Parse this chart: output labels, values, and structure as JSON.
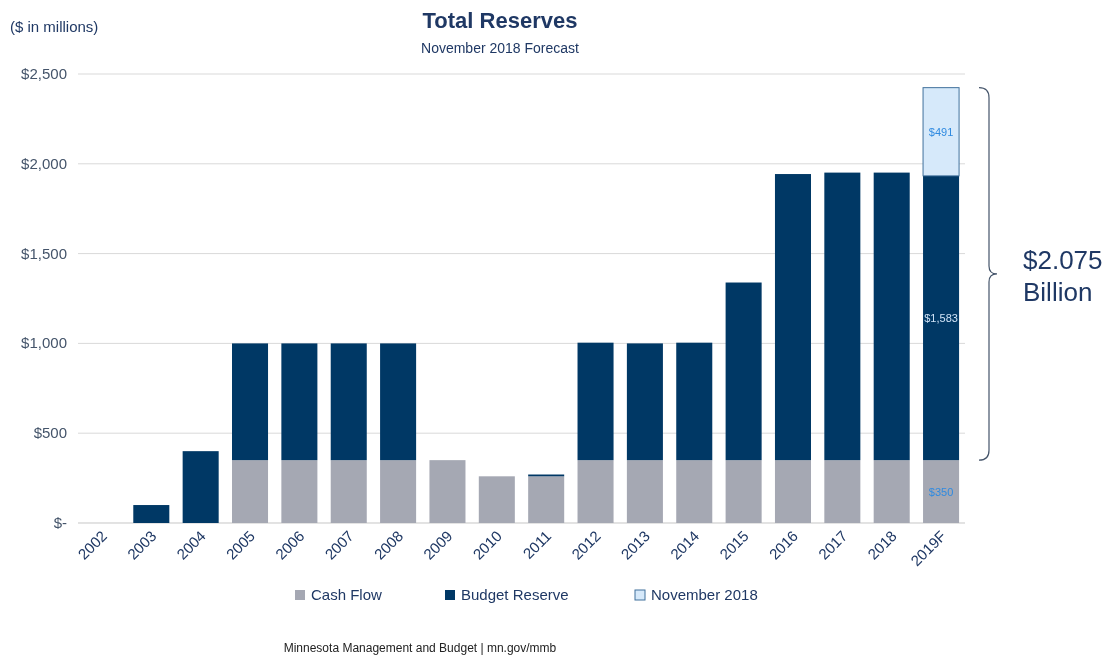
{
  "chart_data": {
    "type": "bar",
    "title": "Total Reserves",
    "subtitle": "November 2018 Forecast",
    "ylabel": "($ in millions)",
    "categories": [
      "2002",
      "2003",
      "2004",
      "2005",
      "2006",
      "2007",
      "2008",
      "2009",
      "2010",
      "2011",
      "2012",
      "2013",
      "2014",
      "2015",
      "2016",
      "2017",
      "2018",
      "2019F"
    ],
    "stacked": true,
    "series": [
      {
        "name": "Cash Flow",
        "color": "#a5a8b3",
        "values": [
          0,
          0,
          0,
          350,
          350,
          350,
          350,
          350,
          260,
          260,
          350,
          350,
          350,
          350,
          350,
          350,
          350,
          350
        ],
        "value_labels": [
          null,
          null,
          null,
          null,
          null,
          null,
          null,
          null,
          null,
          null,
          null,
          null,
          null,
          null,
          null,
          null,
          null,
          "$350"
        ]
      },
      {
        "name": "Budget Reserve",
        "color": "#003865",
        "values": [
          0,
          100,
          400,
          650,
          650,
          650,
          650,
          0,
          0,
          10,
          654,
          650,
          654,
          989,
          1593,
          1601,
          1601,
          1583
        ],
        "value_labels": [
          null,
          null,
          null,
          null,
          null,
          null,
          null,
          null,
          null,
          null,
          null,
          null,
          null,
          null,
          null,
          null,
          null,
          "$1,583"
        ]
      },
      {
        "name": "November 2018",
        "color": "#d6e9fa",
        "values": [
          0,
          0,
          0,
          0,
          0,
          0,
          0,
          0,
          0,
          0,
          0,
          0,
          0,
          0,
          0,
          0,
          0,
          491
        ],
        "value_labels": [
          null,
          null,
          null,
          null,
          null,
          null,
          null,
          null,
          null,
          null,
          null,
          null,
          null,
          null,
          null,
          null,
          null,
          "$491"
        ]
      }
    ],
    "ylim": [
      0,
      2500
    ],
    "yticks": [
      {
        "value": 0,
        "label": "$-"
      },
      {
        "value": 500,
        "label": "$500"
      },
      {
        "value": 1000,
        "label": "$1,000"
      },
      {
        "value": 1500,
        "label": "$1,500"
      },
      {
        "value": 2000,
        "label": "$2,000"
      },
      {
        "value": 2500,
        "label": "$2,500"
      }
    ],
    "grid": "y",
    "legend": "bottom",
    "annotations": [
      "$2.075 Billion",
      "Minnesota Management and Budget  |  mn.gov/mmb"
    ]
  }
}
